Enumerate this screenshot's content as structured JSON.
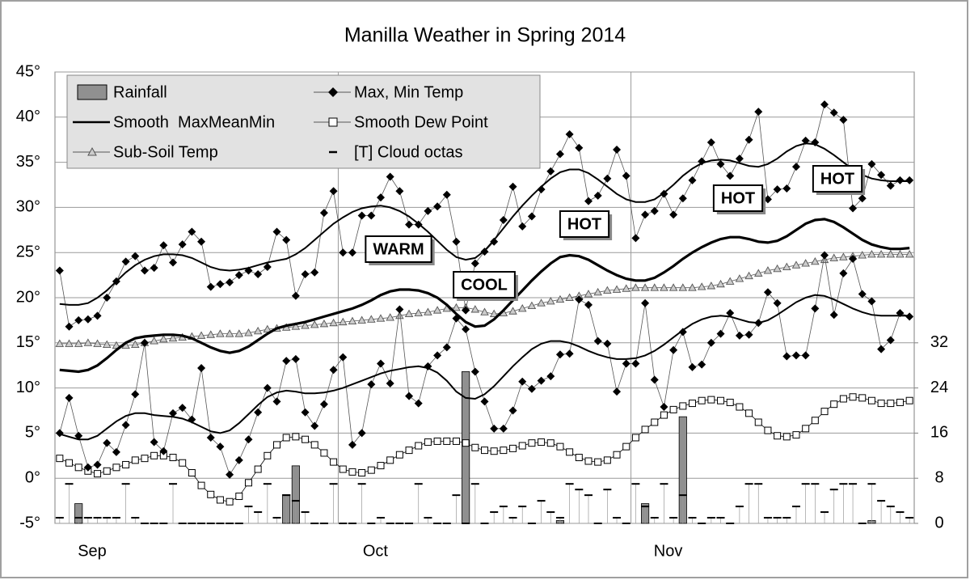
{
  "chart_data": {
    "type": "combo",
    "title": "Manilla Weather in Spring 2014",
    "categories": [
      "Sep",
      null,
      null,
      null,
      null,
      null,
      null,
      null,
      null,
      null,
      null,
      null,
      null,
      null,
      null,
      null,
      null,
      null,
      null,
      null,
      null,
      null,
      null,
      null,
      null,
      null,
      null,
      null,
      null,
      null,
      "Oct",
      null,
      null,
      null,
      null,
      null,
      null,
      null,
      null,
      null,
      null,
      null,
      null,
      null,
      null,
      null,
      null,
      null,
      null,
      null,
      null,
      null,
      null,
      null,
      null,
      null,
      null,
      null,
      null,
      null,
      null,
      "Nov",
      null,
      null,
      null,
      null,
      null,
      null,
      null,
      null,
      null,
      null,
      null,
      null,
      null,
      null,
      null,
      null,
      null,
      null,
      null,
      null,
      null,
      null,
      null,
      null,
      null,
      null,
      null,
      null,
      null
    ],
    "ylim": [
      -5,
      45
    ],
    "yticks": [
      {
        "value": -5,
        "label": "-5°"
      },
      {
        "value": 0,
        "label": "0°"
      },
      {
        "value": 5,
        "label": "5°"
      },
      {
        "value": 10,
        "label": "10°"
      },
      {
        "value": 15,
        "label": "15°"
      },
      {
        "value": 20,
        "label": "20°"
      },
      {
        "value": 25,
        "label": "25°"
      },
      {
        "value": 30,
        "label": "30°"
      },
      {
        "value": 35,
        "label": "35°"
      },
      {
        "value": 40,
        "label": "40°"
      },
      {
        "value": 45,
        "label": "45°"
      }
    ],
    "y2lim": [
      0,
      80
    ],
    "y2ticks": [
      0,
      8,
      16,
      24,
      32
    ],
    "grid": true,
    "series": [
      {
        "name": "Rainfall",
        "type": "bar",
        "axis": "y2",
        "color": "#909090",
        "values": [
          0,
          0,
          3.5,
          0,
          0,
          0,
          0,
          0,
          0,
          0,
          0,
          0,
          0,
          0,
          0,
          0,
          0,
          0,
          0,
          0,
          0,
          0,
          0,
          0,
          5.1,
          10.2,
          0,
          0,
          0,
          0,
          0,
          0,
          0,
          0,
          0,
          0,
          0,
          0,
          0,
          0,
          0,
          0,
          0,
          26.9,
          0,
          0,
          0,
          0,
          0,
          0,
          0,
          0,
          0,
          0.5,
          0,
          0,
          0,
          0,
          0,
          0,
          0,
          0,
          3.5,
          0,
          0,
          0,
          18.9,
          0,
          0,
          0,
          0,
          0,
          0,
          0,
          0,
          0,
          0,
          0,
          0,
          0,
          0,
          0,
          0,
          0,
          0,
          0,
          0.5,
          0,
          0,
          0,
          0
        ]
      },
      {
        "name": "Max, Min Temp",
        "type": "marker-line",
        "color": "#000000",
        "max": [
          23,
          16.8,
          17.5,
          17.6,
          18,
          20,
          21.8,
          24,
          24.6,
          23,
          23.3,
          25.8,
          23.9,
          25.9,
          27.3,
          26.2,
          21.2,
          21.5,
          21.7,
          22.5,
          23,
          22.6,
          23.4,
          27.3,
          26.4,
          20.2,
          22.6,
          22.8,
          29.4,
          31.8,
          25,
          25,
          29.1,
          29.1,
          31.1,
          33.4,
          31.8,
          28.1,
          28.1,
          29.6,
          30.1,
          31.4,
          26.2,
          18.6,
          23.8,
          25.1,
          26.2,
          28.6,
          32.3,
          27.9,
          29,
          32,
          34,
          35.9,
          38.1,
          36.6,
          30.7,
          31.3,
          33.2,
          36.4,
          33.5,
          26.6,
          29.2,
          29.6,
          31.5,
          29.2,
          31,
          33,
          35.1,
          37.2,
          34.8,
          33.5,
          35.4,
          37.5,
          40.6,
          30.9,
          32,
          32.1,
          34.5,
          37.4,
          37.2,
          41.4,
          40.5,
          39.7,
          29.9,
          31,
          34.8,
          33.6,
          32.4,
          33,
          33
        ],
        "min": [
          5,
          8.9,
          4.7,
          1.2,
          1.5,
          3.9,
          2.9,
          5.9,
          9.3,
          15,
          4,
          3,
          7.2,
          7.8,
          6.5,
          12.2,
          4.5,
          3.5,
          0.4,
          2,
          4.3,
          7.3,
          10,
          8.5,
          13,
          13.2,
          7.3,
          5.8,
          8.2,
          12,
          13.4,
          3.7,
          5,
          10.4,
          12.7,
          10.5,
          18.7,
          9.1,
          8.3,
          12.4,
          13.6,
          14.5,
          17.7,
          16.5,
          11.8,
          8.5,
          5.5,
          5.5,
          7.5,
          10.7,
          9.9,
          10.8,
          11.3,
          13.7,
          13.8,
          19.8,
          19.2,
          15.2,
          14.9,
          9.6,
          12.7,
          12.7,
          19.4,
          10.9,
          7.9,
          14.2,
          16.2,
          12.3,
          12.6,
          15,
          16,
          18.3,
          15.8,
          15.9,
          17.2,
          20.6,
          19.4,
          13.5,
          13.6,
          13.6,
          18.8,
          24.7,
          18.1,
          22.7,
          24.3,
          20.4,
          19.6,
          14.3,
          15.3,
          18.3,
          17.9
        ]
      },
      {
        "name": "Smooth  MaxMeanMin",
        "type": "smooth",
        "color": "#000000",
        "max": [
          19.3,
          19.2,
          19.2,
          19.4,
          20,
          20.8,
          21.8,
          22.8,
          23.6,
          24.2,
          24.6,
          24.8,
          24.8,
          24.7,
          24.4,
          23.9,
          23.4,
          23.1,
          23,
          23.1,
          23.3,
          23.6,
          23.9,
          24.1,
          24.3,
          24.8,
          25.5,
          26.4,
          27.3,
          28.2,
          28.9,
          29.5,
          29.9,
          30.1,
          30.2,
          30,
          29.6,
          29,
          28.2,
          27.3,
          26.3,
          25.3,
          24.5,
          24.2,
          24.4,
          25.2,
          26.4,
          27.7,
          29,
          30.2,
          31.3,
          32.3,
          33.2,
          33.9,
          34.2,
          34.2,
          33.8,
          33.1,
          32.3,
          31.5,
          30.9,
          30.6,
          30.6,
          30.9,
          31.6,
          32.5,
          33.5,
          34.3,
          34.9,
          35.2,
          35.3,
          35.2,
          34.9,
          34.6,
          34.5,
          34.8,
          35.4,
          36.2,
          36.8,
          37.1,
          37,
          36.5,
          35.8,
          35,
          34.2,
          33.6,
          33.2,
          33,
          32.9,
          32.9,
          32.9
        ],
        "mean": [
          12,
          11.9,
          11.8,
          12,
          12.5,
          13.3,
          14.2,
          15,
          15.5,
          15.7,
          15.8,
          15.9,
          15.9,
          15.8,
          15.5,
          15,
          14.5,
          14.1,
          13.9,
          14.1,
          14.6,
          15.3,
          16,
          16.6,
          16.9,
          17.1,
          17.3,
          17.6,
          17.9,
          18.2,
          18.5,
          18.8,
          19.2,
          19.7,
          20.3,
          20.7,
          20.9,
          20.9,
          20.8,
          20.5,
          20,
          19.2,
          18.2,
          17.3,
          16.8,
          16.9,
          17.6,
          18.6,
          19.7,
          20.8,
          21.9,
          22.9,
          23.8,
          24.5,
          24.7,
          24.6,
          24.2,
          23.6,
          23,
          22.5,
          22.1,
          21.9,
          21.9,
          22.2,
          22.8,
          23.5,
          24.3,
          25,
          25.6,
          26.1,
          26.5,
          26.7,
          26.7,
          26.5,
          26.2,
          26.1,
          26.3,
          26.8,
          27.5,
          28.2,
          28.6,
          28.7,
          28.4,
          27.8,
          27.1,
          26.4,
          25.9,
          25.6,
          25.4,
          25.4,
          25.5
        ],
        "min": [
          4.9,
          4.6,
          4.3,
          4.3,
          4.7,
          5.5,
          6.3,
          6.9,
          7.2,
          7.2,
          7,
          6.9,
          6.8,
          6.6,
          6.2,
          5.7,
          5.2,
          5,
          5.3,
          6.1,
          7.1,
          8.1,
          9,
          9.5,
          9.7,
          9.6,
          9.4,
          9.4,
          9.5,
          9.7,
          10,
          10.4,
          10.8,
          11.2,
          11.6,
          11.9,
          12.1,
          12.3,
          12.4,
          12.2,
          11.7,
          10.8,
          9.6,
          8.9,
          8.8,
          9.3,
          10.2,
          11.3,
          12.4,
          13.4,
          14.3,
          14.9,
          15.2,
          15.2,
          15,
          14.6,
          14.1,
          13.7,
          13.4,
          13.2,
          13.2,
          13.3,
          13.6,
          14.1,
          14.8,
          15.6,
          16.4,
          17.1,
          17.6,
          17.9,
          18,
          17.9,
          17.6,
          17.3,
          17.2,
          17.5,
          18.1,
          18.8,
          19.5,
          20,
          20.3,
          20.2,
          19.8,
          19.3,
          18.8,
          18.4,
          18.1,
          18,
          18,
          18,
          18
        ]
      },
      {
        "name": "Smooth Dew Point",
        "type": "square-line",
        "color": "#000000",
        "values": [
          2.2,
          1.7,
          1.2,
          0.8,
          0.5,
          0.8,
          1.2,
          1.5,
          2,
          2.2,
          2.5,
          2.5,
          2.3,
          1.7,
          0.6,
          -0.8,
          -1.8,
          -2.4,
          -2.6,
          -2,
          -0.5,
          1,
          2.5,
          3.7,
          4.5,
          4.6,
          4.3,
          3.7,
          2.8,
          1.8,
          1,
          0.7,
          0.6,
          0.9,
          1.4,
          2,
          2.6,
          3.1,
          3.6,
          4,
          4.1,
          4.1,
          4.1,
          3.9,
          3.4,
          3.1,
          3,
          3.1,
          3.3,
          3.6,
          3.9,
          4,
          3.9,
          3.5,
          2.9,
          2.3,
          1.9,
          1.8,
          2,
          2.6,
          3.5,
          4.5,
          5.4,
          6.2,
          7,
          7.6,
          8,
          8.3,
          8.6,
          8.7,
          8.6,
          8.4,
          7.9,
          7.2,
          6.2,
          5.3,
          4.7,
          4.6,
          4.8,
          5.5,
          6.4,
          7.4,
          8.2,
          8.8,
          9,
          8.9,
          8.6,
          8.3,
          8.3,
          8.4,
          8.6
        ]
      },
      {
        "name": "Sub-Soil Temp",
        "type": "triangle-line",
        "color": "#555555",
        "values": [
          14.9,
          14.9,
          14.9,
          15,
          14.9,
          14.8,
          14.7,
          14.7,
          14.8,
          15,
          15.2,
          15.4,
          15.5,
          15.6,
          15.7,
          15.8,
          15.9,
          16,
          16,
          16,
          16.1,
          16.3,
          16.5,
          16.6,
          16.7,
          16.8,
          16.9,
          17,
          17.1,
          17.2,
          17.3,
          17.4,
          17.5,
          17.6,
          17.7,
          17.8,
          18,
          18.2,
          18.3,
          18.4,
          18.6,
          18.8,
          18.9,
          18.9,
          18.7,
          18.4,
          18.2,
          18.3,
          18.5,
          18.8,
          19.1,
          19.4,
          19.6,
          19.8,
          20,
          20.2,
          20.4,
          20.6,
          20.8,
          20.9,
          21,
          21.1,
          21.1,
          21.1,
          21.1,
          21.1,
          21.1,
          21.1,
          21.2,
          21.3,
          21.5,
          21.8,
          22.1,
          22.4,
          22.7,
          23,
          23.2,
          23.4,
          23.6,
          23.8,
          24,
          24.2,
          24.4,
          24.5,
          24.6,
          24.7,
          24.8,
          24.8,
          24.8,
          24.8,
          24.8
        ]
      },
      {
        "name": "[T] Cloud octas",
        "type": "dash",
        "axis": "y2",
        "color": "#000000",
        "values": [
          1,
          7,
          1,
          1,
          1,
          1,
          1,
          7,
          1,
          0,
          0,
          0,
          7,
          0,
          0,
          0,
          0,
          0,
          0,
          0,
          3,
          2,
          7,
          1,
          5,
          4,
          2,
          0,
          0,
          7,
          0,
          0,
          7,
          0,
          1,
          0,
          0,
          0,
          7,
          1,
          0,
          0,
          5,
          0,
          7,
          0,
          2,
          3,
          1,
          3,
          0,
          4,
          2,
          1,
          7,
          6,
          5,
          0,
          6,
          1,
          0,
          7,
          3,
          1,
          7,
          1,
          5,
          1,
          0,
          1,
          1,
          0,
          3,
          7,
          7,
          1,
          1,
          1,
          3,
          7,
          7,
          2,
          6,
          7,
          7,
          0,
          7,
          4,
          3,
          2,
          1
        ]
      }
    ],
    "annotations": [
      "WARM",
      "COOL",
      "HOT",
      "HOT",
      "HOT"
    ]
  }
}
